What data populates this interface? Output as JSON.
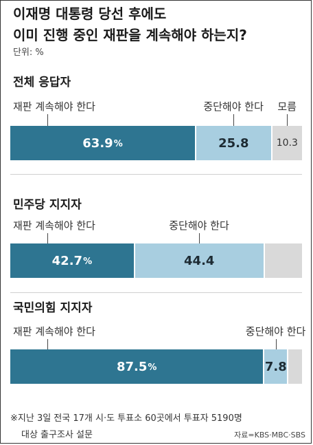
{
  "title_line1": "이재명 대통령 당선 후에도",
  "title_line2": "이미 진행 중인 재판을 계속해야 하는지?",
  "unit": "단위: %",
  "colors": {
    "continue": "#2e7591",
    "stop": "#a8cee0",
    "unknown": "#d9d9d9"
  },
  "chart_data": {
    "type": "bar",
    "orientation": "horizontal-stacked-100",
    "categories": [
      "전체 응답자",
      "민주당 지지자",
      "국민의힘 지지자"
    ],
    "series": [
      {
        "name": "재판 계속해야 한다",
        "values": [
          63.9,
          42.7,
          87.5
        ]
      },
      {
        "name": "중단해야 한다",
        "values": [
          25.8,
          44.4,
          7.8
        ]
      },
      {
        "name": "모름",
        "values": [
          10.3,
          12.9,
          4.7
        ]
      }
    ],
    "segment_labels": [
      [
        "63.9",
        "25.8",
        "10.3"
      ],
      [
        "42.7",
        "44.4",
        ""
      ],
      [
        "87.5",
        "7.8",
        ""
      ]
    ],
    "percent_sign": "%",
    "series_labels": [
      [
        "재판 계속해야 한다",
        "중단해야 한다",
        "모름"
      ],
      [
        "재판 계속해야 한다",
        "중단해야 한다",
        ""
      ],
      [
        "재판 계속해야 한다",
        "중단해야 한다",
        ""
      ]
    ]
  },
  "footnote_line1": "※지난 3일 전국 17개 시·도 투표소 60곳에서 투표자 5190명",
  "footnote_line2": "대상 출구조사 설문",
  "source": "자료=KBS·MBC·SBS"
}
